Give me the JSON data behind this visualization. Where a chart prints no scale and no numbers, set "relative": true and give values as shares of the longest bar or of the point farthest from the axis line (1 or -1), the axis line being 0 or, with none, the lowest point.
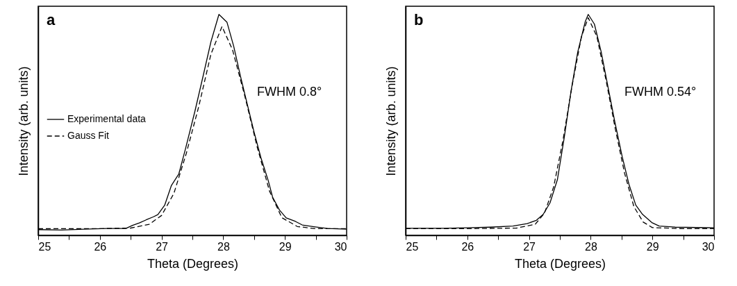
{
  "chart_data": [
    {
      "type": "line",
      "relative": true,
      "xlabel": "Theta (Degrees)",
      "ylabel": "Intensity (arb. units)",
      "xlim": [
        25,
        30
      ],
      "xticks": [
        25,
        {
          "value": 25.5,
          "label": null
        },
        26,
        {
          "value": 26.5,
          "label": null
        },
        27,
        {
          "value": 27.5,
          "label": null
        },
        28,
        {
          "value": 28.5,
          "label": null
        },
        29,
        {
          "value": 29.5,
          "label": null
        },
        30
      ],
      "legend": "left",
      "tick_labels": "x",
      "annotations": [
        "a",
        "FWHM 0.8°"
      ],
      "series": [
        {
          "name": "Experimental data",
          "color": "#000000",
          "line_style": "solid",
          "x": [
            25,
            25.38,
            25.75,
            26.12,
            26.42,
            26.53,
            26.64,
            26.75,
            26.87,
            26.94,
            27.05,
            27.16,
            27.28,
            27.39,
            27.54,
            27.68,
            27.8,
            27.93,
            28.06,
            28.17,
            28.28,
            28.39,
            28.5,
            28.61,
            28.73,
            28.8,
            28.91,
            29.02,
            29.17,
            29.28,
            29.47,
            29.69,
            30
          ],
          "values": [
            0.026,
            0.024,
            0.028,
            0.031,
            0.031,
            0.045,
            0.056,
            0.07,
            0.084,
            0.094,
            0.136,
            0.226,
            0.278,
            0.394,
            0.561,
            0.729,
            0.876,
            1.0,
            0.965,
            0.855,
            0.719,
            0.593,
            0.467,
            0.352,
            0.247,
            0.173,
            0.115,
            0.079,
            0.063,
            0.047,
            0.039,
            0.031,
            0.028
          ]
        },
        {
          "name": "Gauss Fit",
          "color": "#000000",
          "line_style": "dashed",
          "x": [
            25,
            26,
            26.5,
            26.8,
            27.0,
            27.2,
            27.4,
            27.6,
            27.8,
            27.98,
            28.15,
            28.35,
            28.55,
            28.75,
            28.95,
            29.2,
            29.5,
            30
          ],
          "values": [
            0.03,
            0.03,
            0.033,
            0.05,
            0.09,
            0.19,
            0.37,
            0.58,
            0.82,
            0.945,
            0.84,
            0.63,
            0.4,
            0.2,
            0.08,
            0.04,
            0.03,
            0.03
          ]
        }
      ]
    },
    {
      "type": "line",
      "relative": true,
      "xlabel": "Theta (Degrees)",
      "ylabel": "Intensity (arb. units)",
      "xlim": [
        25,
        30
      ],
      "xticks": [
        25,
        {
          "value": 25.5,
          "label": null
        },
        26,
        {
          "value": 26.5,
          "label": null
        },
        27,
        {
          "value": 27.5,
          "label": null
        },
        28,
        {
          "value": 28.5,
          "label": null
        },
        29,
        {
          "value": 29.5,
          "label": null
        },
        30
      ],
      "legend": "left",
      "tick_labels": "x",
      "annotations": [
        "b",
        "FWHM 0.54°"
      ],
      "series": [
        {
          "name": "Experimental data",
          "color": "#000000",
          "line_style": "solid",
          "x": [
            25,
            25.62,
            26.0,
            26.37,
            26.74,
            26.97,
            27.12,
            27.23,
            27.34,
            27.46,
            27.57,
            27.68,
            27.79,
            27.91,
            27.96,
            28.06,
            28.17,
            28.28,
            28.39,
            28.51,
            28.62,
            28.73,
            28.84,
            28.99,
            29.11,
            29.37,
            30
          ],
          "values": [
            0.032,
            0.032,
            0.034,
            0.037,
            0.042,
            0.053,
            0.068,
            0.095,
            0.147,
            0.252,
            0.441,
            0.651,
            0.83,
            0.966,
            1.0,
            0.956,
            0.83,
            0.672,
            0.515,
            0.357,
            0.231,
            0.137,
            0.095,
            0.058,
            0.042,
            0.037,
            0.034
          ]
        },
        {
          "name": "Gauss Fit",
          "color": "#000000",
          "line_style": "dashed",
          "x": [
            25,
            26,
            26.8,
            27.1,
            27.25,
            27.4,
            27.55,
            27.7,
            27.85,
            27.96,
            28.1,
            28.25,
            28.4,
            28.55,
            28.7,
            28.85,
            29.0,
            29.5,
            30
          ],
          "values": [
            0.03,
            0.03,
            0.033,
            0.05,
            0.1,
            0.22,
            0.43,
            0.68,
            0.9,
            0.985,
            0.9,
            0.7,
            0.48,
            0.28,
            0.13,
            0.06,
            0.035,
            0.03,
            0.03
          ]
        }
      ]
    }
  ]
}
